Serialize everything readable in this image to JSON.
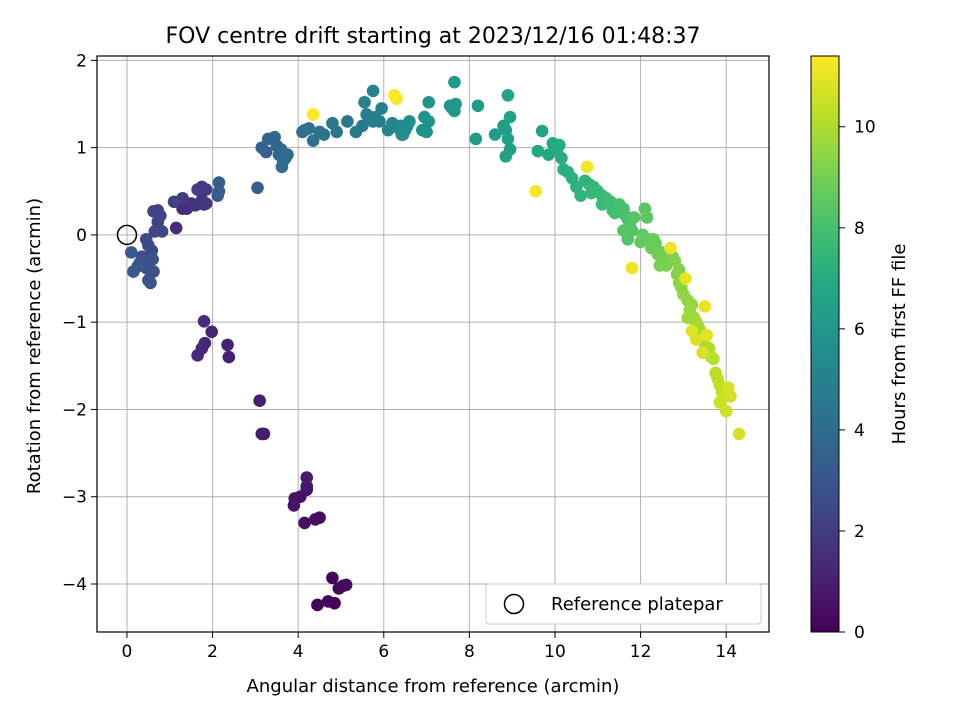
{
  "chart_data": {
    "type": "scatter",
    "title": "FOV centre drift starting at 2023/12/16 01:48:37",
    "xlabel": "Angular distance from reference (arcmin)",
    "ylabel": "Rotation from reference (arcmin)",
    "xlim": [
      -0.7,
      15.0
    ],
    "ylim": [
      -4.55,
      2.05
    ],
    "xticks": [
      0,
      2,
      4,
      6,
      8,
      10,
      12,
      14
    ],
    "yticks": [
      -4,
      -3,
      -2,
      -1,
      0,
      1,
      2
    ],
    "grid": true,
    "legend": {
      "location": "lower-right",
      "entries": [
        "Reference platepar"
      ]
    },
    "colorbar": {
      "label": "Hours from first FF file",
      "colormap": "viridis",
      "range": [
        0,
        11.4
      ],
      "ticks": [
        0,
        2,
        4,
        6,
        8,
        10
      ]
    },
    "reference_point": {
      "name": "Reference platepar",
      "x": 0,
      "y": 0
    },
    "series": [
      {
        "points": [
          [
            4.85,
            -4.22
          ],
          [
            4.45,
            -4.24
          ],
          [
            4.7,
            -4.2
          ],
          [
            4.95,
            -4.05
          ],
          [
            5.05,
            -4.02
          ],
          [
            5.12,
            -4.01
          ],
          [
            4.8,
            -3.93
          ],
          [
            4.15,
            -3.3
          ],
          [
            4.4,
            -3.26
          ],
          [
            4.5,
            -3.24
          ],
          [
            3.9,
            -3.1
          ],
          [
            3.92,
            -3.02
          ],
          [
            4.05,
            -3.0
          ],
          [
            4.2,
            -2.92
          ],
          [
            4.2,
            -2.88
          ],
          [
            4.2,
            -2.78
          ],
          [
            3.1,
            -1.9
          ],
          [
            3.15,
            -2.28
          ],
          [
            3.2,
            -2.28
          ],
          [
            1.65,
            -1.38
          ],
          [
            1.75,
            -1.3
          ],
          [
            1.82,
            -1.24
          ],
          [
            2.35,
            -1.26
          ],
          [
            2.38,
            -1.4
          ],
          [
            1.8,
            -0.99
          ],
          [
            1.98,
            -1.11
          ],
          [
            0.1,
            -0.2
          ],
          [
            0.15,
            -0.42
          ],
          [
            0.25,
            -0.36
          ],
          [
            0.3,
            -0.32
          ],
          [
            0.35,
            -0.25
          ],
          [
            0.45,
            -0.38
          ],
          [
            0.5,
            -0.52
          ],
          [
            0.55,
            -0.55
          ],
          [
            0.6,
            -0.28
          ],
          [
            0.62,
            -0.42
          ],
          [
            0.45,
            -0.05
          ],
          [
            0.5,
            -0.12
          ],
          [
            0.58,
            -0.18
          ],
          [
            0.4,
            -0.3
          ],
          [
            0.55,
            -0.42
          ],
          [
            0.65,
            0.04
          ],
          [
            0.82,
            0.04
          ],
          [
            0.72,
            0.15
          ],
          [
            0.78,
            0.22
          ],
          [
            0.62,
            0.27
          ],
          [
            0.72,
            0.28
          ],
          [
            1.15,
            0.08
          ],
          [
            1.1,
            0.38
          ],
          [
            1.3,
            0.3
          ],
          [
            1.4,
            0.3
          ],
          [
            1.3,
            0.42
          ],
          [
            1.5,
            0.36
          ],
          [
            1.6,
            0.34
          ],
          [
            1.7,
            0.36
          ],
          [
            1.75,
            0.4
          ],
          [
            1.8,
            0.35
          ],
          [
            1.85,
            0.36
          ],
          [
            1.65,
            0.52
          ],
          [
            1.75,
            0.55
          ],
          [
            1.85,
            0.52
          ],
          [
            2.15,
            0.5
          ],
          [
            2.15,
            0.6
          ],
          [
            2.12,
            0.45
          ],
          [
            3.05,
            0.54
          ],
          [
            3.15,
            1.0
          ],
          [
            3.25,
            0.95
          ],
          [
            3.3,
            1.1
          ],
          [
            3.45,
            1.12
          ],
          [
            3.5,
            1.02
          ],
          [
            3.6,
            0.98
          ],
          [
            3.55,
            0.92
          ],
          [
            3.65,
            0.85
          ],
          [
            3.62,
            0.78
          ],
          [
            3.75,
            0.92
          ],
          [
            3.7,
            0.88
          ],
          [
            4.1,
            1.18
          ],
          [
            4.15,
            1.2
          ],
          [
            4.25,
            1.22
          ],
          [
            4.35,
            1.08
          ],
          [
            4.35,
            1.38
          ],
          [
            4.5,
            1.18
          ],
          [
            4.6,
            1.15
          ],
          [
            4.8,
            1.28
          ],
          [
            4.9,
            1.18
          ],
          [
            5.15,
            1.3
          ],
          [
            5.35,
            1.18
          ],
          [
            5.5,
            1.25
          ],
          [
            5.55,
            1.52
          ],
          [
            5.6,
            1.38
          ],
          [
            5.7,
            1.32
          ],
          [
            5.75,
            1.3
          ],
          [
            5.8,
            1.35
          ],
          [
            5.9,
            1.3
          ],
          [
            5.95,
            1.45
          ],
          [
            6.1,
            1.2
          ],
          [
            6.2,
            1.28
          ],
          [
            6.25,
            1.6
          ],
          [
            6.3,
            1.56
          ],
          [
            6.35,
            1.22
          ],
          [
            6.4,
            1.25
          ],
          [
            6.42,
            1.15
          ],
          [
            6.45,
            1.15
          ],
          [
            6.5,
            1.2
          ],
          [
            6.55,
            1.25
          ],
          [
            6.6,
            1.3
          ],
          [
            5.75,
            1.65
          ],
          [
            6.9,
            1.2
          ],
          [
            6.95,
            1.35
          ],
          [
            7.0,
            1.18
          ],
          [
            7.05,
            1.3
          ],
          [
            7.05,
            1.52
          ],
          [
            7.55,
            1.48
          ],
          [
            7.6,
            1.45
          ],
          [
            7.65,
            1.42
          ],
          [
            7.68,
            1.5
          ],
          [
            7.65,
            1.75
          ],
          [
            8.2,
            1.48
          ],
          [
            8.15,
            1.1
          ],
          [
            8.6,
            1.15
          ],
          [
            8.8,
            1.25
          ],
          [
            8.85,
            1.2
          ],
          [
            8.85,
            0.9
          ],
          [
            8.9,
            1.6
          ],
          [
            8.9,
            1.1
          ],
          [
            8.95,
            1.35
          ],
          [
            8.95,
            0.98
          ],
          [
            9.55,
            0.5
          ],
          [
            9.6,
            0.96
          ],
          [
            9.7,
            1.19
          ],
          [
            9.85,
            0.92
          ],
          [
            9.95,
            1.05
          ],
          [
            10.0,
            1.0
          ],
          [
            10.05,
            0.98
          ],
          [
            10.1,
            1.03
          ],
          [
            10.15,
            0.88
          ],
          [
            10.2,
            0.75
          ],
          [
            10.3,
            0.72
          ],
          [
            10.4,
            0.65
          ],
          [
            10.5,
            0.55
          ],
          [
            10.6,
            0.45
          ],
          [
            10.7,
            0.62
          ],
          [
            10.75,
            0.78
          ],
          [
            10.8,
            0.58
          ],
          [
            10.85,
            0.48
          ],
          [
            10.9,
            0.55
          ],
          [
            11.0,
            0.5
          ],
          [
            11.1,
            0.45
          ],
          [
            11.2,
            0.42
          ],
          [
            11.3,
            0.38
          ],
          [
            11.1,
            0.35
          ],
          [
            11.35,
            0.28
          ],
          [
            11.4,
            0.25
          ],
          [
            11.5,
            0.35
          ],
          [
            11.6,
            0.3
          ],
          [
            11.65,
            0.22
          ],
          [
            11.7,
            0.18
          ],
          [
            11.75,
            0.1
          ],
          [
            11.8,
            0.05
          ],
          [
            11.85,
            0.2
          ],
          [
            11.6,
            0.05
          ],
          [
            11.7,
            -0.05
          ],
          [
            11.8,
            -0.38
          ],
          [
            12.0,
            -0.08
          ],
          [
            12.05,
            0.0
          ],
          [
            12.1,
            0.3
          ],
          [
            12.15,
            0.2
          ],
          [
            12.2,
            -0.05
          ],
          [
            12.25,
            -0.15
          ],
          [
            12.3,
            -0.05
          ],
          [
            12.35,
            -0.1
          ],
          [
            12.4,
            -0.22
          ],
          [
            12.45,
            -0.35
          ],
          [
            12.5,
            -0.2
          ],
          [
            12.55,
            -0.25
          ],
          [
            12.6,
            -0.35
          ],
          [
            12.7,
            -0.15
          ],
          [
            12.75,
            -0.25
          ],
          [
            12.8,
            -0.3
          ],
          [
            12.85,
            -0.45
          ],
          [
            12.9,
            -0.4
          ],
          [
            12.9,
            -0.55
          ],
          [
            12.95,
            -0.6
          ],
          [
            13.0,
            -0.68
          ],
          [
            13.05,
            -0.5
          ],
          [
            13.1,
            -0.75
          ],
          [
            13.15,
            -0.85
          ],
          [
            13.2,
            -0.8
          ],
          [
            13.25,
            -0.95
          ],
          [
            13.3,
            -1.0
          ],
          [
            13.35,
            -1.05
          ],
          [
            13.4,
            -1.1
          ],
          [
            13.45,
            -1.2
          ],
          [
            13.5,
            -1.25
          ],
          [
            13.55,
            -1.15
          ],
          [
            13.6,
            -1.3
          ],
          [
            13.65,
            -1.4
          ],
          [
            13.7,
            -1.42
          ],
          [
            13.75,
            -1.58
          ],
          [
            13.8,
            -1.65
          ],
          [
            13.85,
            -1.72
          ],
          [
            13.9,
            -1.8
          ],
          [
            13.85,
            -1.92
          ],
          [
            13.95,
            -1.85
          ],
          [
            14.05,
            -1.75
          ],
          [
            14.1,
            -1.85
          ],
          [
            14.0,
            -2.02
          ],
          [
            14.3,
            -2.28
          ],
          [
            13.5,
            -0.82
          ],
          [
            13.1,
            -0.95
          ],
          [
            13.2,
            -1.1
          ],
          [
            13.3,
            -1.2
          ],
          [
            13.45,
            -1.35
          ]
        ]
      }
    ]
  }
}
